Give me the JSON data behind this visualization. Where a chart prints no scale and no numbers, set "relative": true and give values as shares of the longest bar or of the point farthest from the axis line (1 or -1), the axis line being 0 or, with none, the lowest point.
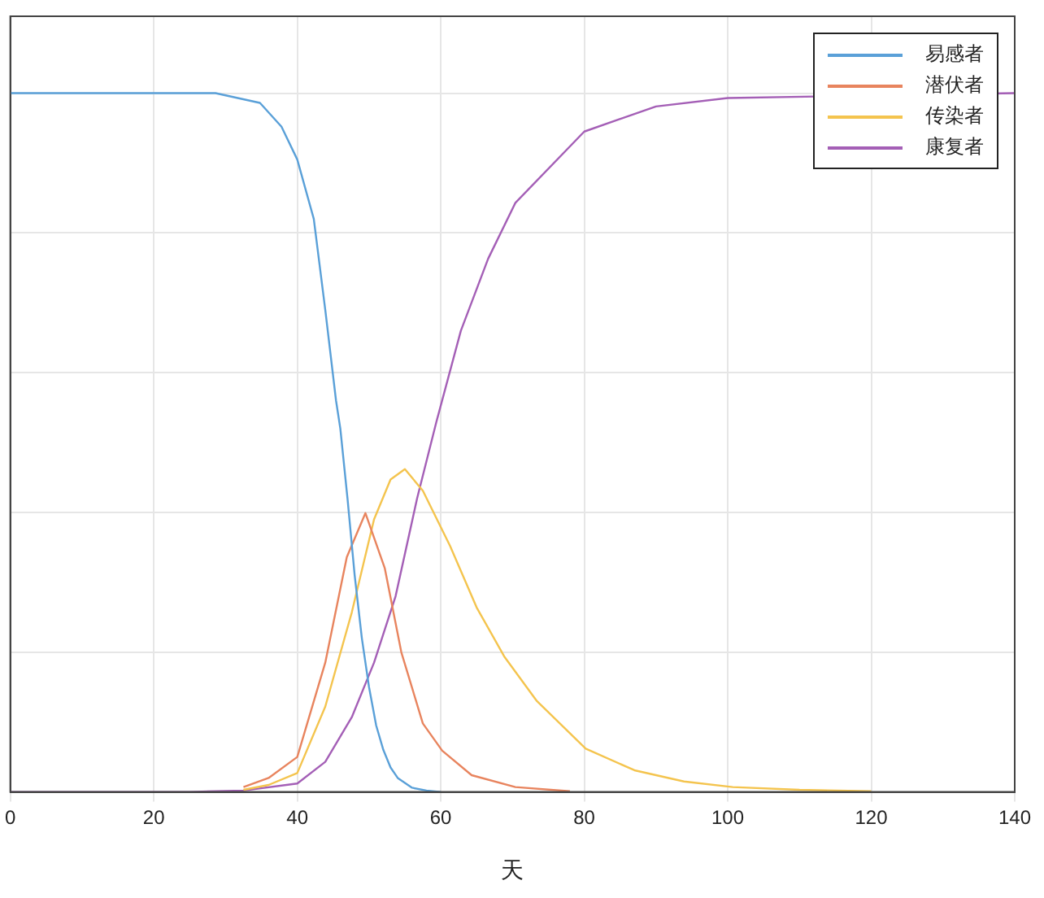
{
  "chart_data": {
    "type": "line",
    "xlabel": "天",
    "relative": true,
    "xlim": [
      0,
      140
    ],
    "xticks": [
      0,
      20,
      40,
      60,
      80,
      100,
      120,
      140
    ],
    "grid": true,
    "legend": "top right",
    "marker": "none",
    "line_style": "solid",
    "tick_labels": "x",
    "series": [
      {
        "name": "易感者",
        "color": "#5aa0d8",
        "x": [
          0,
          28.6,
          34.8,
          37.8,
          40,
          42.3,
          43.9,
          45.4,
          46,
          47,
          48,
          49,
          50,
          51,
          52,
          53,
          54,
          56,
          58,
          60
        ],
        "values": [
          1,
          1,
          0.986,
          0.952,
          0.905,
          0.82,
          0.69,
          0.56,
          0.52,
          0.42,
          0.31,
          0.22,
          0.15,
          0.095,
          0.06,
          0.035,
          0.02,
          0.006,
          0.002,
          0
        ]
      },
      {
        "name": "潜伏者",
        "color": "#e8845e",
        "x": [
          32.5,
          36,
          40,
          43.9,
          46.9,
          49.5,
          52.2,
          54.5,
          57.5,
          60.2,
          64.3,
          70.4,
          78
        ],
        "values": [
          0.007,
          0.02,
          0.05,
          0.185,
          0.336,
          0.399,
          0.32,
          0.2,
          0.098,
          0.059,
          0.024,
          0.007,
          0.001
        ]
      },
      {
        "name": "传染者",
        "color": "#f4c44e",
        "x": [
          32.5,
          36,
          40,
          43.9,
          47.6,
          50.7,
          53,
          55,
          57.5,
          61.3,
          65,
          68.9,
          73.4,
          80.2,
          87,
          93.9,
          100.7,
          110,
          120
        ],
        "values": [
          0.003,
          0.01,
          0.027,
          0.122,
          0.257,
          0.39,
          0.447,
          0.462,
          0.431,
          0.352,
          0.264,
          0.193,
          0.13,
          0.062,
          0.031,
          0.015,
          0.007,
          0.003,
          0.001
        ]
      },
      {
        "name": "康复者",
        "color": "#a45fb6",
        "x": [
          0,
          25,
          32.5,
          40,
          43.9,
          47.6,
          50.7,
          53.7,
          56.7,
          59.4,
          62.8,
          66.6,
          70.4,
          80,
          90,
          100,
          140
        ],
        "values": [
          0,
          0,
          0.002,
          0.012,
          0.043,
          0.107,
          0.185,
          0.28,
          0.42,
          0.53,
          0.66,
          0.763,
          0.843,
          0.945,
          0.981,
          0.993,
          1
        ]
      }
    ]
  }
}
